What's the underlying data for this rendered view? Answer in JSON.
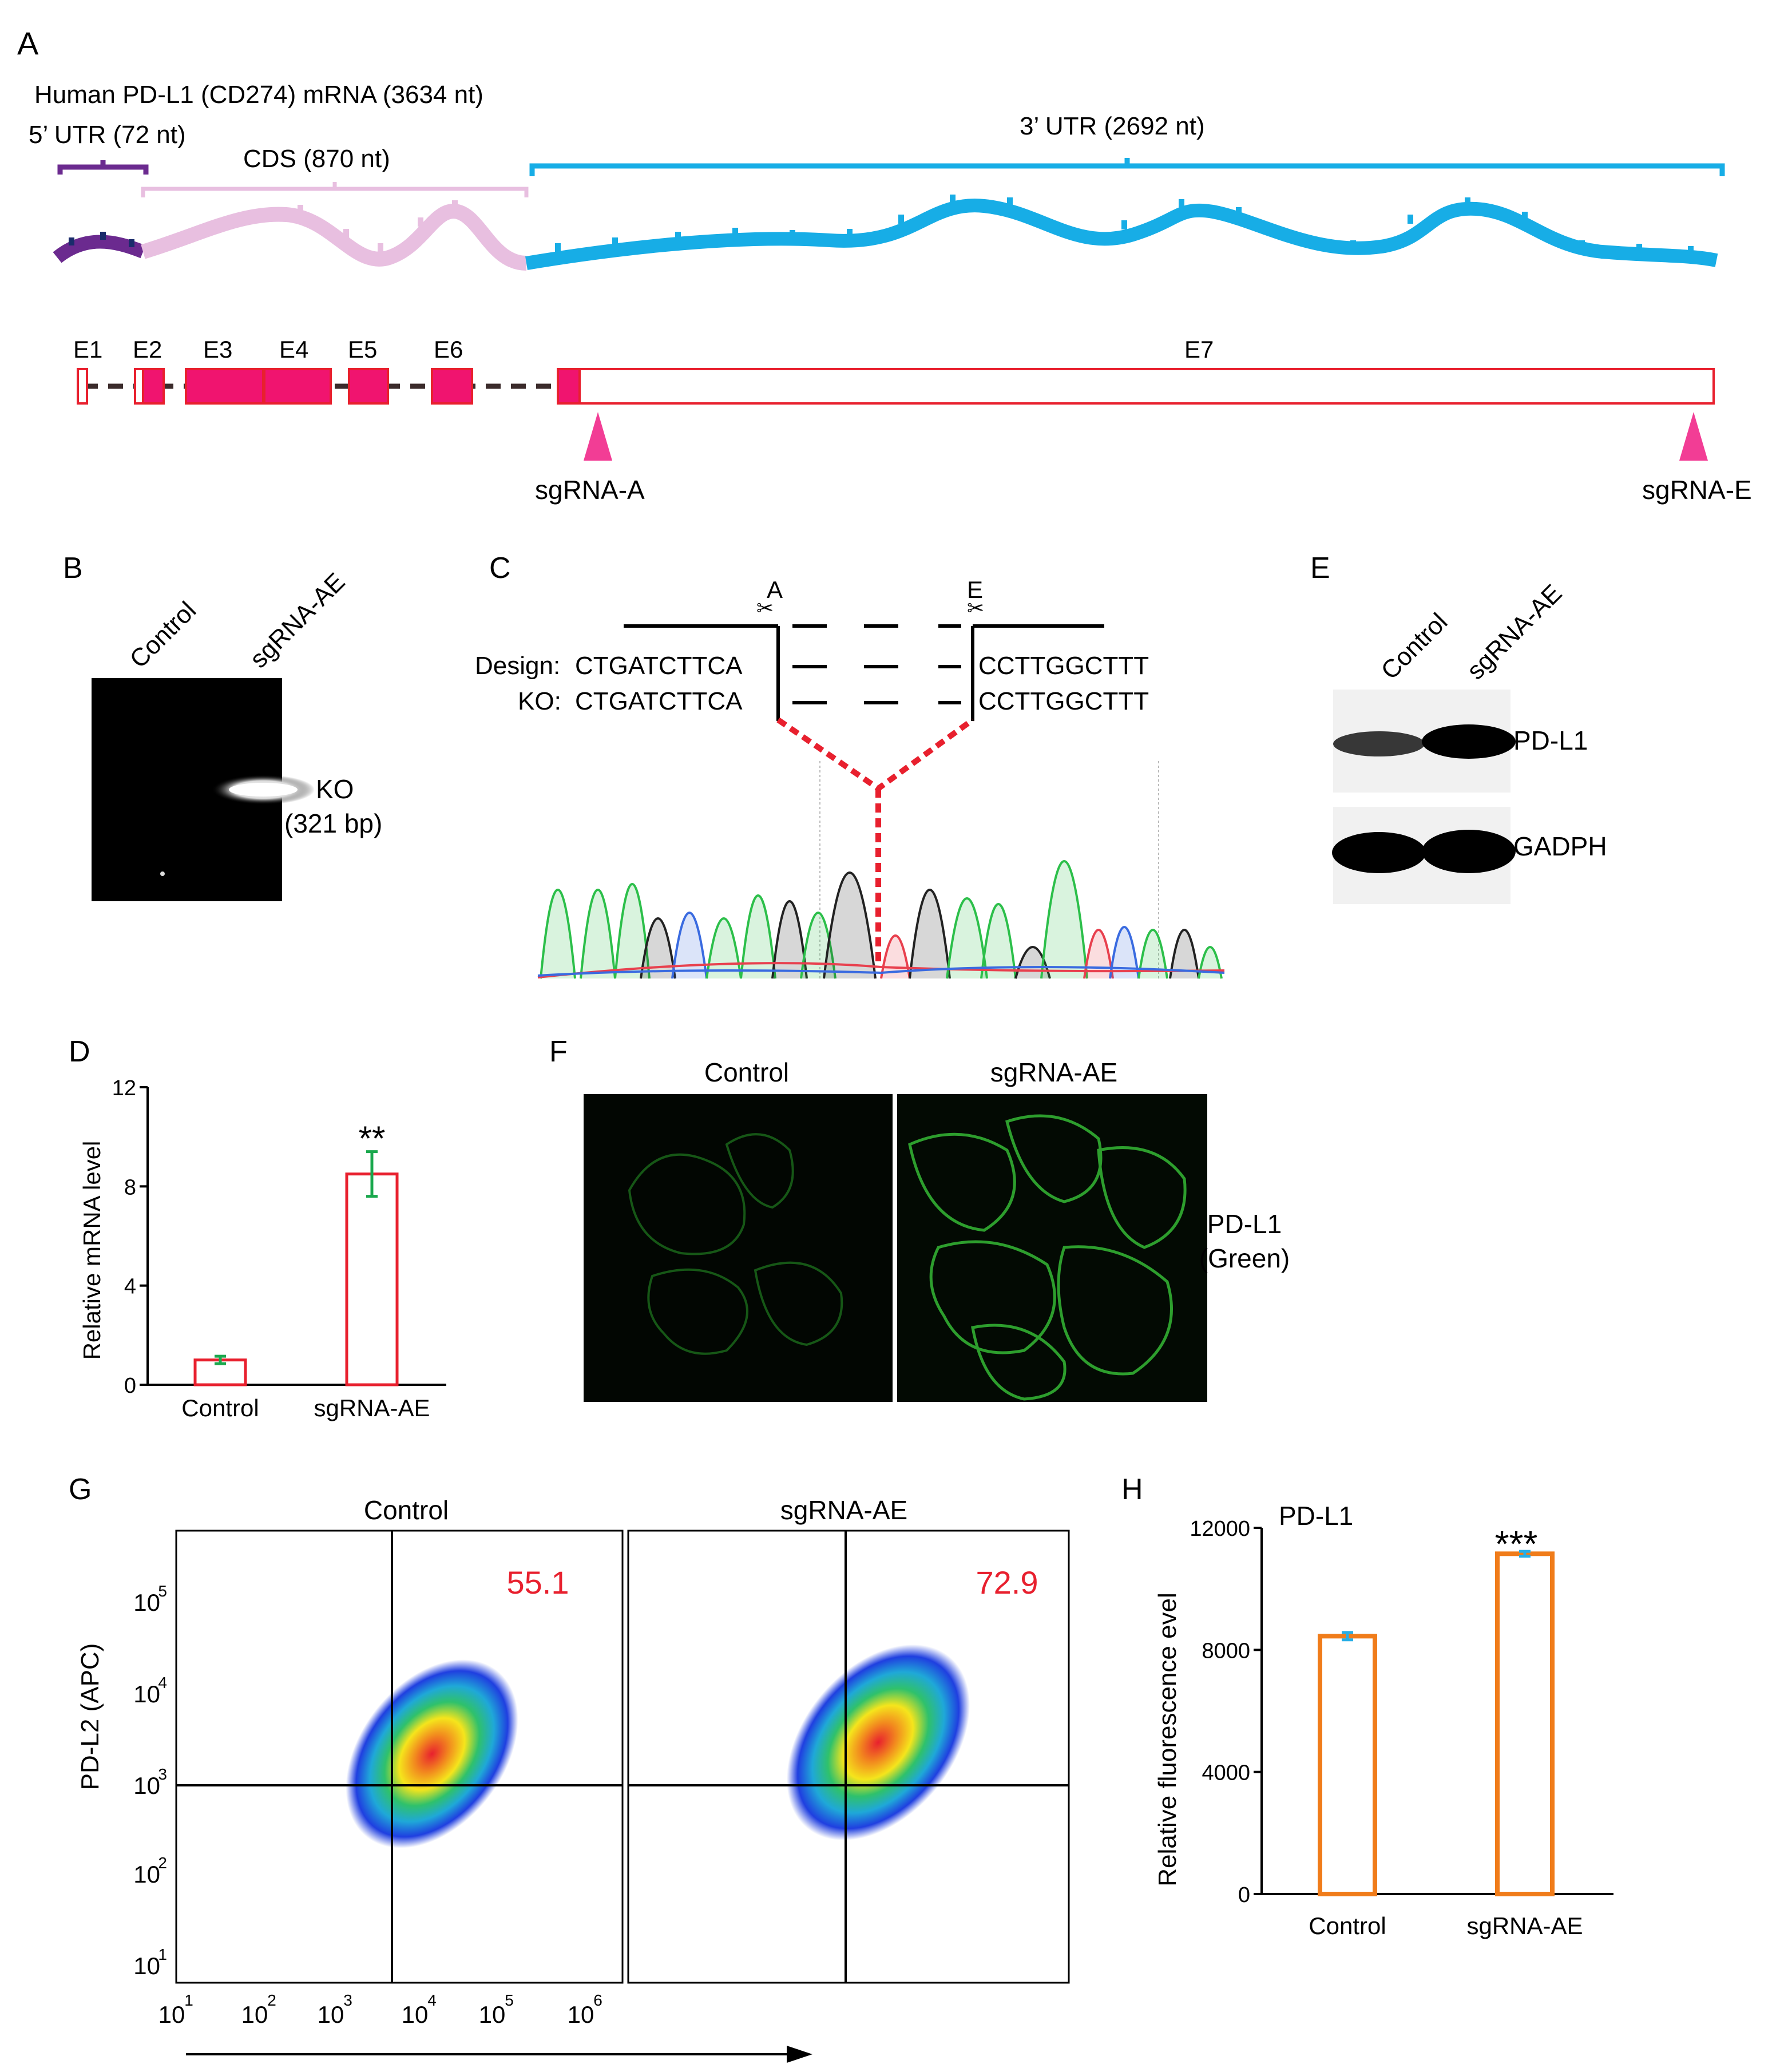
{
  "panel_labels": {
    "A": "A",
    "B": "B",
    "C": "C",
    "D": "D",
    "E": "E",
    "F": "F",
    "G": "G",
    "H": "H"
  },
  "colors": {
    "utr5": "#6b2a8f",
    "cds": "#e8bfe0",
    "utr3": "#17ade6",
    "exon": "#f0146f",
    "exon_border": "#e8202e",
    "sgrna": "#f23d95",
    "bar_red": "#e8202e",
    "errbar_green": "#1aa84d",
    "bar_orange": "#f07c1a",
    "errbar_blue": "#27aee6",
    "quad_red": "#e8202e",
    "dash_red": "#e8202e"
  },
  "panelA": {
    "title": "Human PD-L1 (CD274) mRNA (3634 nt)",
    "utr5_label": "5’ UTR (72 nt)",
    "cds_label": "CDS (870 nt)",
    "utr3_label": "3’ UTR (2692 nt)",
    "exons": [
      "E1",
      "E2",
      "E3",
      "E4",
      "E5",
      "E6",
      "E7"
    ],
    "sgrna_a": "sgRNA-A",
    "sgrna_e": "sgRNA-E"
  },
  "panelB": {
    "lanes": [
      "Control",
      "sgRNA-AE"
    ],
    "band_label_1": "KO",
    "band_label_2": "(321 bp)"
  },
  "panelC": {
    "site_a": "A",
    "site_e": "E",
    "design_label": "Design:",
    "ko_label": "KO:",
    "seq_left": "CTGATCTTCA",
    "seq_right": "CCTTGGCTTT"
  },
  "panelE": {
    "lanes": [
      "Control",
      "sgRNA-AE"
    ],
    "band1": "PD-L1",
    "band2": "GADPH"
  },
  "panelF": {
    "col1": "Control",
    "col2": "sgRNA-AE",
    "label1": "PD-L1",
    "label2": "(Green)"
  },
  "panelG": {
    "ylabel": "PD-L2 (APC)",
    "plots": [
      {
        "title": "Control",
        "quadrant_value": "55.1"
      },
      {
        "title": "sgRNA-AE",
        "quadrant_value": "72.9"
      }
    ],
    "y_ticks": [
      "10",
      "10",
      "10",
      "10",
      "10"
    ],
    "y_tick_exp": [
      "1",
      "2",
      "3",
      "4",
      "5"
    ],
    "x_ticks": [
      "10",
      "10",
      "10",
      "10",
      "10",
      "10"
    ],
    "x_tick_exp": [
      "1",
      "2",
      "3",
      "4",
      "5",
      "6"
    ]
  },
  "chart_data": [
    {
      "type": "bar",
      "panel": "D",
      "categories": [
        "Control",
        "sgRNA-AE"
      ],
      "values": [
        1.0,
        8.5
      ],
      "errors": [
        0.15,
        0.9
      ],
      "ylabel": "Relative mRNA level",
      "ylim": [
        0,
        12
      ],
      "yticks": [
        "0",
        "4",
        "8",
        "12"
      ],
      "annotation": "**"
    },
    {
      "type": "bar",
      "panel": "H",
      "categories": [
        "Control",
        "sgRNA-AE"
      ],
      "values": [
        8450,
        11150
      ],
      "errors": [
        120,
        80
      ],
      "title": "PD-L1",
      "ylabel": "Relative fluorescence evel",
      "ylim": [
        0,
        12000
      ],
      "yticks": [
        "0",
        "4000",
        "8000",
        "12000"
      ],
      "annotation": "***"
    }
  ]
}
